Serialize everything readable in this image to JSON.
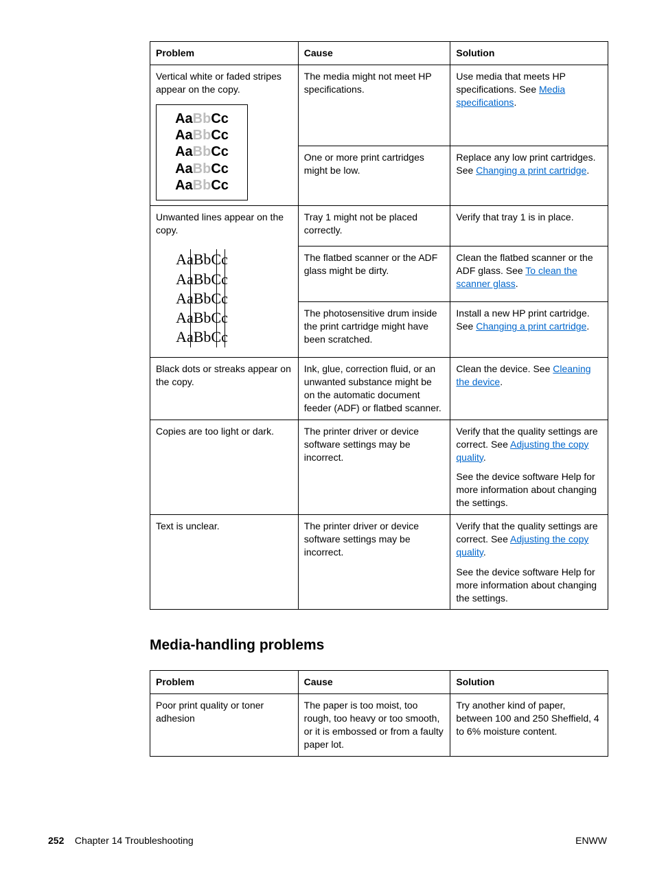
{
  "table1": {
    "headers": {
      "problem": "Problem",
      "cause": "Cause",
      "solution": "Solution"
    },
    "groups": [
      {
        "problem": "Vertical white or faded stripes appear on the copy.",
        "illus": {
          "bordered": true,
          "style": "sans-faded",
          "lines": 5,
          "segments": [
            {
              "t": "Aa",
              "faded": false
            },
            {
              "t": "B",
              "faded": true
            },
            {
              "t": "b",
              "faded": true
            },
            {
              "t": "Cc",
              "faded": false
            }
          ]
        },
        "rows": [
          {
            "cause": "The media might not meet HP specifications.",
            "solution": [
              {
                "text": "Use media that meets HP specifications. See "
              },
              {
                "link": "Media specifications"
              },
              {
                "text": "."
              }
            ]
          },
          {
            "cause": "One or more print cartridges might be low.",
            "solution": [
              {
                "text": "Replace any low print cartridges. See "
              },
              {
                "link": "Changing a print cartridge"
              },
              {
                "text": "."
              }
            ]
          }
        ]
      },
      {
        "problem": "Unwanted lines appear on the copy.",
        "illus": {
          "bordered": false,
          "style": "serif-strike",
          "lines": 5,
          "segments": [
            {
              "t": "A",
              "strike": false
            },
            {
              "t": "a",
              "strike": true
            },
            {
              "t": "Bb",
              "strike": false
            },
            {
              "t": "C",
              "strike": true
            },
            {
              "t": "c",
              "strike": true
            }
          ]
        },
        "rows": [
          {
            "cause": "Tray 1 might not be placed correctly.",
            "solution": [
              {
                "text": "Verify that tray 1 is in place."
              }
            ]
          },
          {
            "cause": "The flatbed scanner or the ADF glass might be dirty.",
            "solution": [
              {
                "text": "Clean the flatbed scanner or the ADF glass. See "
              },
              {
                "link": "To clean the scanner glass"
              },
              {
                "text": "."
              }
            ]
          },
          {
            "cause": "The photosensitive drum inside the print cartridge might have been scratched.",
            "solution": [
              {
                "text": "Install a new HP print cartridge. See "
              },
              {
                "link": "Changing a print cartridge"
              },
              {
                "text": "."
              }
            ]
          }
        ]
      },
      {
        "problem": "Black dots or streaks appear on the copy.",
        "rows": [
          {
            "cause": "Ink, glue, correction fluid, or an unwanted substance might be on the automatic document feeder (ADF) or flatbed scanner.",
            "solution": [
              {
                "text": "Clean the device. See "
              },
              {
                "link": "Cleaning the device"
              },
              {
                "text": "."
              }
            ]
          }
        ]
      },
      {
        "problem": "Copies are too light or dark.",
        "rows": [
          {
            "cause": "The printer driver or device software settings may be incorrect.",
            "solutionBlocks": [
              [
                {
                  "text": "Verify that the quality settings are correct. See "
                },
                {
                  "link": "Adjusting the copy quality"
                },
                {
                  "text": "."
                }
              ],
              [
                {
                  "text": "See the device software Help for more information about changing the settings."
                }
              ]
            ]
          }
        ]
      },
      {
        "problem": "Text is unclear.",
        "rows": [
          {
            "cause": "The printer driver or device software settings may be incorrect.",
            "solutionBlocks": [
              [
                {
                  "text": "Verify that the quality settings are correct. See "
                },
                {
                  "link": "Adjusting the copy quality"
                },
                {
                  "text": "."
                }
              ],
              [
                {
                  "text": "See the device software Help for more information about changing the settings."
                }
              ]
            ]
          }
        ]
      }
    ]
  },
  "sectionHeading": "Media-handling problems",
  "table2": {
    "headers": {
      "problem": "Problem",
      "cause": "Cause",
      "solution": "Solution"
    },
    "rows": [
      {
        "problem": "Poor print quality or toner adhesion",
        "cause": "The paper is too moist, too rough, too heavy or too smooth, or it is embossed or from a faulty paper lot.",
        "solution": "Try another kind of paper, between 100 and 250 Sheffield, 4 to 6% moisture content."
      }
    ]
  },
  "footer": {
    "pageNum": "252",
    "chapter": "Chapter 14  Troubleshooting",
    "right": "ENWW"
  },
  "style": {
    "linkColor": "#0066cc",
    "fadedColor": "#bdbdbd",
    "borderColor": "#000000"
  }
}
